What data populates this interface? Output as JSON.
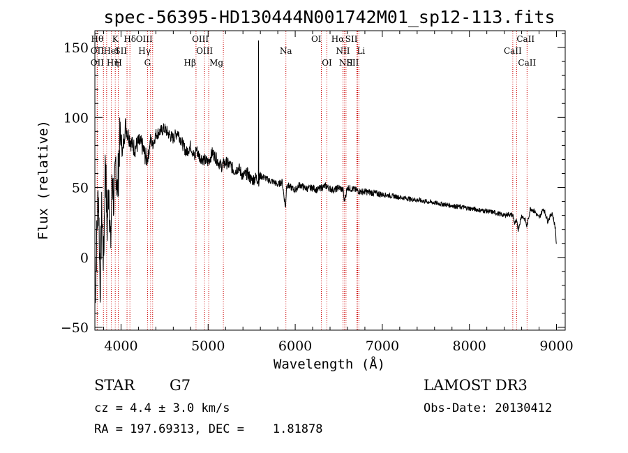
{
  "chart_data": {
    "type": "line",
    "title": "spec-56395-HD130444N001742M01_sp12-113.fits",
    "xlabel": "Wavelength (Å)",
    "ylabel": "Flux (relative)",
    "xlim": [
      3700,
      9100
    ],
    "ylim": [
      -52,
      162
    ],
    "xticks": [
      4000,
      5000,
      6000,
      7000,
      8000,
      9000
    ],
    "yticks": [
      -50,
      0,
      50,
      100,
      150
    ],
    "xtick_labels": [
      "4000",
      "5000",
      "6000",
      "7000",
      "8000",
      "9000"
    ],
    "ytick_labels": [
      "−50",
      "0",
      "50",
      "100",
      "150"
    ],
    "grid": false,
    "series": [
      {
        "name": "flux",
        "color": "#000000",
        "x": [
          3700,
          3720,
          3740,
          3760,
          3780,
          3800,
          3820,
          3840,
          3860,
          3880,
          3900,
          3920,
          3940,
          3960,
          3980,
          4000,
          4020,
          4050,
          4080,
          4100,
          4130,
          4160,
          4200,
          4240,
          4280,
          4300,
          4320,
          4340,
          4360,
          4400,
          4450,
          4500,
          4550,
          4600,
          4650,
          4700,
          4750,
          4800,
          4850,
          4860,
          4900,
          4950,
          5000,
          5050,
          5100,
          5150,
          5200,
          5250,
          5300,
          5350,
          5400,
          5450,
          5500,
          5550,
          5580,
          5600,
          5650,
          5700,
          5750,
          5800,
          5850,
          5890,
          5900,
          5950,
          6000,
          6050,
          6100,
          6150,
          6200,
          6250,
          6300,
          6350,
          6400,
          6450,
          6500,
          6550,
          6563,
          6600,
          6650,
          6700,
          6750,
          6800,
          6900,
          7000,
          7100,
          7200,
          7300,
          7400,
          7500,
          7600,
          7700,
          7800,
          7900,
          8000,
          8100,
          8200,
          8300,
          8400,
          8450,
          8500,
          8520,
          8540,
          8560,
          8600,
          8640,
          8660,
          8700,
          8750,
          8800,
          8850,
          8900,
          8950,
          8990,
          9000
        ],
        "values": [
          -30,
          10,
          50,
          -20,
          35,
          -5,
          75,
          20,
          55,
          5,
          60,
          35,
          70,
          45,
          80,
          85,
          75,
          95,
          88,
          85,
          80,
          78,
          82,
          80,
          72,
          70,
          75,
          85,
          80,
          88,
          90,
          92,
          88,
          85,
          90,
          82,
          75,
          80,
          70,
          78,
          72,
          70,
          68,
          75,
          70,
          65,
          68,
          66,
          62,
          64,
          58,
          60,
          55,
          57,
          55,
          58,
          57,
          55,
          54,
          52,
          54,
          35,
          52,
          50,
          48,
          52,
          50,
          49,
          50,
          48,
          50,
          51,
          49,
          48,
          50,
          48,
          40,
          50,
          49,
          48,
          47,
          47,
          46,
          45,
          44,
          43,
          42,
          41,
          40,
          39,
          38,
          37,
          36,
          35,
          34,
          33,
          32,
          30,
          31,
          30,
          24,
          26,
          20,
          30,
          27,
          22,
          35,
          33,
          28,
          35,
          26,
          32,
          20,
          5
        ]
      }
    ],
    "spectral_lines": [
      {
        "label": "Hθ",
        "x": 3798,
        "row": 0,
        "align": "end"
      },
      {
        "label": "OII",
        "x": 3727,
        "row": 1,
        "align": "middle"
      },
      {
        "label": "OII",
        "x": 3727,
        "row": 2,
        "align": "middle"
      },
      {
        "label": "K",
        "x": 3934,
        "row": 0,
        "align": "middle"
      },
      {
        "label": "HeI",
        "x": 3889,
        "row": 1,
        "align": "middle"
      },
      {
        "label": "Hη",
        "x": 3835,
        "row": 2,
        "align": "start"
      },
      {
        "label": "H",
        "x": 3969,
        "row": 2,
        "align": "middle"
      },
      {
        "label": "SII",
        "x": 4069,
        "row": 1,
        "align": "end"
      },
      {
        "label": "Hδ",
        "x": 4102,
        "row": 0,
        "align": "middle"
      },
      {
        "label": "OIII",
        "x": 4363,
        "row": 0,
        "align": "end"
      },
      {
        "label": "Hγ",
        "x": 4340,
        "row": 1,
        "align": "end"
      },
      {
        "label": "G",
        "x": 4304,
        "row": 2,
        "align": "middle"
      },
      {
        "label": "Hβ",
        "x": 4861,
        "row": 2,
        "align": "end"
      },
      {
        "label": "OIII",
        "x": 4959,
        "row": 1,
        "align": "middle"
      },
      {
        "label": "OIII",
        "x": 5007,
        "row": 0,
        "align": "end"
      },
      {
        "label": "Mg",
        "x": 5175,
        "row": 2,
        "align": "end"
      },
      {
        "label": "Na",
        "x": 5893,
        "row": 1,
        "align": "middle"
      },
      {
        "label": "OI",
        "x": 6300,
        "row": 0,
        "align": "end"
      },
      {
        "label": "OI",
        "x": 6364,
        "row": 2,
        "align": "middle"
      },
      {
        "label": "Hα",
        "x": 6563,
        "row": 0,
        "align": "end"
      },
      {
        "label": "NII",
        "x": 6548,
        "row": 1,
        "align": "middle"
      },
      {
        "label": "NII",
        "x": 6583,
        "row": 2,
        "align": "middle"
      },
      {
        "label": "SII",
        "x": 6716,
        "row": 0,
        "align": "end"
      },
      {
        "label": "Li",
        "x": 6708,
        "row": 1,
        "align": "start"
      },
      {
        "label": "SII",
        "x": 6731,
        "row": 2,
        "align": "end"
      },
      {
        "label": "CaII",
        "x": 8542,
        "row": 0,
        "align": "start"
      },
      {
        "label": "CaII",
        "x": 8498,
        "row": 1,
        "align": "middle"
      },
      {
        "label": "CaII",
        "x": 8662,
        "row": 2,
        "align": "middle"
      }
    ],
    "line_color": "#cc0000"
  },
  "info": {
    "object_class": "STAR",
    "subclass": "G7",
    "survey": "LAMOST DR3",
    "cz": "cz = 4.4 ± 3.0 km/s",
    "obs_date": "Obs-Date: 20130412",
    "coords": "RA = 197.69313, DEC =    1.81878"
  }
}
